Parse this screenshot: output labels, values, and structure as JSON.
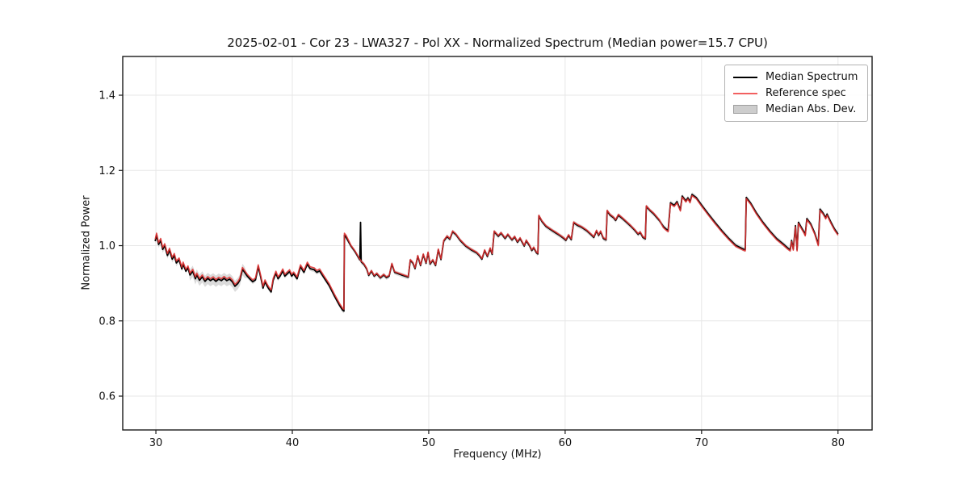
{
  "figure": {
    "title": "2025-02-01 - Cor 23 - LWA327 - Pol XX - Normalized Spectrum (Median power=15.7 CPU)",
    "xlabel": "Frequency (MHz)",
    "ylabel": "Normalized Power"
  },
  "legend": {
    "items": [
      {
        "label": "Median Spectrum",
        "type": "line",
        "color": "#000000"
      },
      {
        "label": "Reference spec",
        "type": "line",
        "color": "#f26060"
      },
      {
        "label": "Median Abs. Dev.",
        "type": "patch",
        "color": "#cdcdcd"
      }
    ]
  },
  "chart_data": {
    "type": "line",
    "title": "2025-02-01 - Cor 23 - LWA327 - Pol XX - Normalized Spectrum (Median power=15.7 CPU)",
    "xlabel": "Frequency (MHz)",
    "ylabel": "Normalized Power",
    "xlim": [
      27.57,
      82.5
    ],
    "ylim": [
      0.51,
      1.503
    ],
    "xticks": [
      30,
      40,
      50,
      60,
      70,
      80
    ],
    "yticks": [
      0.6,
      0.8,
      1.0,
      1.2,
      1.4
    ],
    "grid": true,
    "legend_position": "upper right",
    "colors": {
      "median": "#000000",
      "reference": "#e03030",
      "band": "#bdbdbd",
      "grid": "#e7e7e7",
      "axis": "#1a1a1a"
    },
    "series": [
      {
        "name": "Median Spectrum",
        "style": "line",
        "color": "#000000",
        "points": [
          [
            29.95,
            1.012
          ],
          [
            30.05,
            1.028
          ],
          [
            30.2,
            1.003
          ],
          [
            30.35,
            1.014
          ],
          [
            30.5,
            0.99
          ],
          [
            30.65,
            1.0
          ],
          [
            30.85,
            0.974
          ],
          [
            31.0,
            0.988
          ],
          [
            31.2,
            0.964
          ],
          [
            31.35,
            0.974
          ],
          [
            31.5,
            0.954
          ],
          [
            31.7,
            0.962
          ],
          [
            31.9,
            0.938
          ],
          [
            32.0,
            0.951
          ],
          [
            32.2,
            0.932
          ],
          [
            32.35,
            0.941
          ],
          [
            32.5,
            0.922
          ],
          [
            32.7,
            0.932
          ],
          [
            32.9,
            0.912
          ],
          [
            33.0,
            0.922
          ],
          [
            33.2,
            0.908
          ],
          [
            33.4,
            0.917
          ],
          [
            33.6,
            0.905
          ],
          [
            33.8,
            0.913
          ],
          [
            34.0,
            0.907
          ],
          [
            34.2,
            0.912
          ],
          [
            34.4,
            0.905
          ],
          [
            34.6,
            0.911
          ],
          [
            34.8,
            0.907
          ],
          [
            35.0,
            0.913
          ],
          [
            35.2,
            0.907
          ],
          [
            35.4,
            0.911
          ],
          [
            35.6,
            0.904
          ],
          [
            35.8,
            0.892
          ],
          [
            36.0,
            0.899
          ],
          [
            36.15,
            0.908
          ],
          [
            36.35,
            0.937
          ],
          [
            36.5,
            0.929
          ],
          [
            36.7,
            0.919
          ],
          [
            36.9,
            0.911
          ],
          [
            37.1,
            0.904
          ],
          [
            37.3,
            0.909
          ],
          [
            37.5,
            0.944
          ],
          [
            37.7,
            0.914
          ],
          [
            37.85,
            0.887
          ],
          [
            38.0,
            0.904
          ],
          [
            38.15,
            0.893
          ],
          [
            38.3,
            0.884
          ],
          [
            38.45,
            0.877
          ],
          [
            38.6,
            0.908
          ],
          [
            38.8,
            0.927
          ],
          [
            38.95,
            0.912
          ],
          [
            39.1,
            0.919
          ],
          [
            39.3,
            0.933
          ],
          [
            39.45,
            0.919
          ],
          [
            39.6,
            0.924
          ],
          [
            39.8,
            0.931
          ],
          [
            39.95,
            0.919
          ],
          [
            40.1,
            0.925
          ],
          [
            40.35,
            0.912
          ],
          [
            40.6,
            0.944
          ],
          [
            40.85,
            0.929
          ],
          [
            41.1,
            0.951
          ],
          [
            41.3,
            0.939
          ],
          [
            41.6,
            0.936
          ],
          [
            41.8,
            0.929
          ],
          [
            42.0,
            0.933
          ],
          [
            42.3,
            0.916
          ],
          [
            42.7,
            0.894
          ],
          [
            43.1,
            0.865
          ],
          [
            43.45,
            0.842
          ],
          [
            43.7,
            0.828
          ],
          [
            43.78,
            0.826
          ],
          [
            43.82,
            1.028
          ],
          [
            43.95,
            1.022
          ],
          [
            44.3,
            0.999
          ],
          [
            44.6,
            0.984
          ],
          [
            44.95,
            0.962
          ],
          [
            45.0,
            1.062
          ],
          [
            45.05,
            0.957
          ],
          [
            45.25,
            0.95
          ],
          [
            45.45,
            0.938
          ],
          [
            45.6,
            0.921
          ],
          [
            45.8,
            0.932
          ],
          [
            46.0,
            0.919
          ],
          [
            46.2,
            0.925
          ],
          [
            46.45,
            0.914
          ],
          [
            46.7,
            0.922
          ],
          [
            46.9,
            0.915
          ],
          [
            47.1,
            0.919
          ],
          [
            47.3,
            0.951
          ],
          [
            47.5,
            0.929
          ],
          [
            47.8,
            0.925
          ],
          [
            48.1,
            0.921
          ],
          [
            48.5,
            0.916
          ],
          [
            48.65,
            0.961
          ],
          [
            48.85,
            0.953
          ],
          [
            49.0,
            0.939
          ],
          [
            49.2,
            0.972
          ],
          [
            49.4,
            0.947
          ],
          [
            49.6,
            0.976
          ],
          [
            49.8,
            0.953
          ],
          [
            49.95,
            0.981
          ],
          [
            50.1,
            0.951
          ],
          [
            50.3,
            0.961
          ],
          [
            50.5,
            0.947
          ],
          [
            50.7,
            0.989
          ],
          [
            50.9,
            0.963
          ],
          [
            51.1,
            1.012
          ],
          [
            51.35,
            1.024
          ],
          [
            51.55,
            1.017
          ],
          [
            51.75,
            1.037
          ],
          [
            52.0,
            1.029
          ],
          [
            52.3,
            1.014
          ],
          [
            52.7,
            0.999
          ],
          [
            53.1,
            0.989
          ],
          [
            53.5,
            0.981
          ],
          [
            53.7,
            0.974
          ],
          [
            53.9,
            0.964
          ],
          [
            54.1,
            0.987
          ],
          [
            54.3,
            0.971
          ],
          [
            54.5,
            0.992
          ],
          [
            54.65,
            0.977
          ],
          [
            54.8,
            1.037
          ],
          [
            55.1,
            1.025
          ],
          [
            55.3,
            1.033
          ],
          [
            55.6,
            1.019
          ],
          [
            55.8,
            1.029
          ],
          [
            56.1,
            1.015
          ],
          [
            56.3,
            1.023
          ],
          [
            56.5,
            1.009
          ],
          [
            56.7,
            1.019
          ],
          [
            57.0,
            0.999
          ],
          [
            57.15,
            1.013
          ],
          [
            57.4,
            0.999
          ],
          [
            57.55,
            0.987
          ],
          [
            57.7,
            0.994
          ],
          [
            57.9,
            0.981
          ],
          [
            58.0,
            0.978
          ],
          [
            58.07,
            1.079
          ],
          [
            58.3,
            1.064
          ],
          [
            58.6,
            1.051
          ],
          [
            59.0,
            1.041
          ],
          [
            59.3,
            1.034
          ],
          [
            59.6,
            1.027
          ],
          [
            59.9,
            1.019
          ],
          [
            60.05,
            1.014
          ],
          [
            60.25,
            1.027
          ],
          [
            60.45,
            1.016
          ],
          [
            60.62,
            1.061
          ],
          [
            60.9,
            1.054
          ],
          [
            61.2,
            1.049
          ],
          [
            61.6,
            1.039
          ],
          [
            61.9,
            1.029
          ],
          [
            62.1,
            1.022
          ],
          [
            62.3,
            1.039
          ],
          [
            62.45,
            1.027
          ],
          [
            62.6,
            1.037
          ],
          [
            62.8,
            1.019
          ],
          [
            63.0,
            1.015
          ],
          [
            63.08,
            1.092
          ],
          [
            63.3,
            1.081
          ],
          [
            63.55,
            1.074
          ],
          [
            63.7,
            1.067
          ],
          [
            63.9,
            1.081
          ],
          [
            64.2,
            1.072
          ],
          [
            64.5,
            1.062
          ],
          [
            64.8,
            1.052
          ],
          [
            65.1,
            1.041
          ],
          [
            65.35,
            1.03
          ],
          [
            65.5,
            1.035
          ],
          [
            65.7,
            1.022
          ],
          [
            65.88,
            1.018
          ],
          [
            65.95,
            1.104
          ],
          [
            66.2,
            1.094
          ],
          [
            66.5,
            1.084
          ],
          [
            66.9,
            1.067
          ],
          [
            67.2,
            1.051
          ],
          [
            67.4,
            1.044
          ],
          [
            67.55,
            1.04
          ],
          [
            67.72,
            1.114
          ],
          [
            68.0,
            1.107
          ],
          [
            68.2,
            1.117
          ],
          [
            68.45,
            1.095
          ],
          [
            68.58,
            1.132
          ],
          [
            68.85,
            1.119
          ],
          [
            69.0,
            1.127
          ],
          [
            69.15,
            1.117
          ],
          [
            69.3,
            1.136
          ],
          [
            69.6,
            1.128
          ],
          [
            70.0,
            1.108
          ],
          [
            70.5,
            1.084
          ],
          [
            71.0,
            1.061
          ],
          [
            71.5,
            1.039
          ],
          [
            72.0,
            1.019
          ],
          [
            72.5,
            1.001
          ],
          [
            73.0,
            0.992
          ],
          [
            73.2,
            0.989
          ],
          [
            73.28,
            1.128
          ],
          [
            73.6,
            1.113
          ],
          [
            74.0,
            1.088
          ],
          [
            74.5,
            1.062
          ],
          [
            75.0,
            1.039
          ],
          [
            75.5,
            1.019
          ],
          [
            76.0,
            1.004
          ],
          [
            76.3,
            0.994
          ],
          [
            76.5,
            0.989
          ],
          [
            76.6,
            1.014
          ],
          [
            76.72,
            0.991
          ],
          [
            76.88,
            1.053
          ],
          [
            77.0,
            0.989
          ],
          [
            77.1,
            1.062
          ],
          [
            77.3,
            1.049
          ],
          [
            77.5,
            1.037
          ],
          [
            77.6,
            1.029
          ],
          [
            77.72,
            1.072
          ],
          [
            78.0,
            1.058
          ],
          [
            78.3,
            1.033
          ],
          [
            78.55,
            1.003
          ],
          [
            78.68,
            1.097
          ],
          [
            78.9,
            1.087
          ],
          [
            79.1,
            1.074
          ],
          [
            79.2,
            1.084
          ],
          [
            79.5,
            1.061
          ],
          [
            79.75,
            1.044
          ],
          [
            80.0,
            1.031
          ]
        ]
      },
      {
        "name": "Reference spec",
        "style": "line",
        "color": "#e03030",
        "derived_from": "Median Spectrum",
        "offset_segments": [
          {
            "x_to": 44.0,
            "dy": 0.005
          },
          {
            "x_to": 67.0,
            "dy": 0.002
          },
          {
            "x_to": 82.5,
            "dy": -0.003
          }
        ],
        "skip_spike_x": [
          45.0
        ]
      },
      {
        "name": "Median Abs. Dev.",
        "style": "band",
        "color": "#bdbdbd",
        "halfwidth": 0.006,
        "wide_regions": [
          {
            "from": 32.5,
            "to": 36.5,
            "halfwidth": 0.015
          },
          {
            "from": 30.0,
            "to": 31.5,
            "halfwidth": 0.009
          }
        ]
      }
    ]
  }
}
